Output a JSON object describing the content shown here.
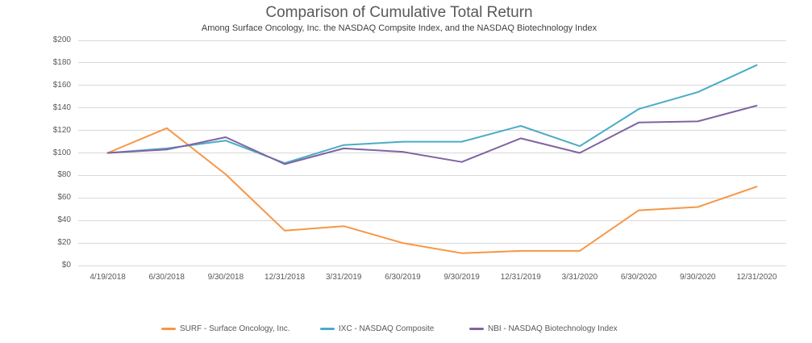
{
  "header": {
    "title": "Comparison of Cumulative Total Return",
    "subtitle": "Among Surface Oncology, Inc. the NASDAQ Compsite Index, and the NASDAQ Biotechnology Index"
  },
  "chart_data": {
    "type": "line",
    "categories": [
      "4/19/2018",
      "6/30/2018",
      "9/30/2018",
      "12/31/2018",
      "3/31/2019",
      "6/30/2019",
      "9/30/2019",
      "12/31/2019",
      "3/31/2020",
      "6/30/2020",
      "9/30/2020",
      "12/31/2020"
    ],
    "series": [
      {
        "id": "SURF",
        "name": "SURF - Surface Oncology, Inc.",
        "color": "#F79646",
        "values": [
          100,
          122,
          81,
          31,
          35,
          20,
          11,
          13,
          13,
          49,
          52,
          70
        ]
      },
      {
        "id": "IXC",
        "name": "IXC - NASDAQ Composite",
        "color": "#4BACC6",
        "values": [
          100,
          104,
          111,
          91,
          107,
          110,
          110,
          124,
          106,
          139,
          154,
          178
        ]
      },
      {
        "id": "NBI",
        "name": "NBI - NASDAQ Biotechnology Index",
        "color": "#8064A2",
        "values": [
          100,
          103,
          114,
          90,
          104,
          101,
          92,
          113,
          100,
          127,
          128,
          142
        ]
      }
    ],
    "title": "Comparison of Cumulative Total Return",
    "xlabel": "",
    "ylabel": "",
    "ylim": [
      0,
      200
    ],
    "ytick_step": 20,
    "ytick_labels": [
      "$0",
      "$20",
      "$40",
      "$60",
      "$80",
      "$100",
      "$120",
      "$140",
      "$160",
      "$180",
      "$200"
    ],
    "grid": true,
    "grid_color": "#d9d9d9",
    "legend_position": "bottom"
  }
}
